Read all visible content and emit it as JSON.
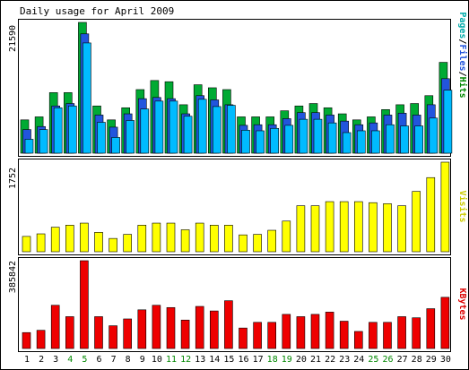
{
  "title": "Daily usage for April 2009",
  "colors": {
    "page_bg": "#ffffff",
    "frame": "#000000",
    "hits": "#00aa33",
    "files": "#2255dd",
    "pages": "#00bbff",
    "visits": "#ffff00",
    "kbytes": "#ee0000",
    "weekday_label": "#000000",
    "weekend_label": "#008800",
    "label_hits": "#008800",
    "label_files": "#2255dd",
    "label_pages": "#00aaaa",
    "label_visits": "#cccc00",
    "label_kbytes": "#dd0000"
  },
  "chart_data": [
    {
      "type": "bar",
      "name": "hits-files-pages",
      "y_max_label": "21590",
      "ylim": [
        0,
        21590
      ],
      "right_label_parts": [
        {
          "text": "Pages",
          "color_key": "label_pages"
        },
        {
          "text": "/",
          "color_key": "frame"
        },
        {
          "text": "Files",
          "color_key": "label_files"
        },
        {
          "text": "/",
          "color_key": "frame"
        },
        {
          "text": "Hits",
          "color_key": "label_hits"
        }
      ],
      "categories": [
        "1",
        "2",
        "3",
        "4",
        "5",
        "6",
        "7",
        "8",
        "9",
        "10",
        "11",
        "12",
        "13",
        "14",
        "15",
        "16",
        "17",
        "18",
        "19",
        "20",
        "21",
        "22",
        "23",
        "24",
        "25",
        "26",
        "27",
        "28",
        "29",
        "30"
      ],
      "series": [
        {
          "key": "hits",
          "values": [
            5500,
            6000,
            10000,
            10000,
            21590,
            7800,
            5500,
            7500,
            10500,
            12000,
            11800,
            8000,
            11300,
            10800,
            10500,
            6000,
            6000,
            6000,
            7000,
            7800,
            8200,
            7500,
            6500,
            5500,
            6000,
            7200,
            8000,
            8200,
            9500,
            15000
          ]
        },
        {
          "key": "files",
          "values": [
            3900,
            4400,
            7800,
            8200,
            19700,
            6300,
            4300,
            6500,
            9000,
            9200,
            9000,
            6500,
            9500,
            8800,
            8000,
            4600,
            4700,
            4700,
            5700,
            6700,
            6700,
            6300,
            5300,
            4700,
            5000,
            6300,
            6600,
            6300,
            8000,
            12300
          ]
        },
        {
          "key": "pages",
          "values": [
            2300,
            3900,
            7500,
            7800,
            18200,
            5100,
            2600,
            5400,
            7300,
            8600,
            8600,
            6100,
            8900,
            7700,
            7900,
            3800,
            3700,
            4100,
            4600,
            5600,
            5600,
            5000,
            3400,
            3700,
            3700,
            4700,
            4500,
            4500,
            5800,
            10400
          ]
        }
      ]
    },
    {
      "type": "bar",
      "name": "visits",
      "y_max_label": "1752",
      "ylim": [
        0,
        1752
      ],
      "right_label_parts": [
        {
          "text": "Visits",
          "color_key": "label_visits"
        }
      ],
      "categories": [
        "1",
        "2",
        "3",
        "4",
        "5",
        "6",
        "7",
        "8",
        "9",
        "10",
        "11",
        "12",
        "13",
        "14",
        "15",
        "16",
        "17",
        "18",
        "19",
        "20",
        "21",
        "22",
        "23",
        "24",
        "25",
        "26",
        "27",
        "28",
        "29",
        "30"
      ],
      "series": [
        {
          "key": "visits",
          "values": [
            300,
            350,
            480,
            520,
            560,
            380,
            260,
            340,
            520,
            560,
            560,
            430,
            560,
            520,
            520,
            330,
            340,
            420,
            600,
            900,
            900,
            980,
            980,
            980,
            960,
            940,
            900,
            1180,
            1450,
            1752
          ]
        }
      ]
    },
    {
      "type": "bar",
      "name": "kbytes",
      "y_max_label": "385842",
      "ylim": [
        0,
        385842
      ],
      "right_label_parts": [
        {
          "text": "KBytes",
          "color_key": "label_kbytes"
        }
      ],
      "categories": [
        "1",
        "2",
        "3",
        "4",
        "5",
        "6",
        "7",
        "8",
        "9",
        "10",
        "11",
        "12",
        "13",
        "14",
        "15",
        "16",
        "17",
        "18",
        "19",
        "20",
        "21",
        "22",
        "23",
        "24",
        "25",
        "26",
        "27",
        "28",
        "29",
        "30"
      ],
      "series": [
        {
          "key": "kbytes",
          "values": [
            70000,
            80000,
            190000,
            140000,
            385842,
            140000,
            100000,
            130000,
            170000,
            190000,
            180000,
            125000,
            185000,
            165000,
            210000,
            90000,
            115000,
            115000,
            150000,
            140000,
            150000,
            160000,
            120000,
            75000,
            115000,
            115000,
            140000,
            135000,
            175000,
            225000
          ]
        }
      ]
    }
  ],
  "x_labels": [
    {
      "text": "1",
      "weekend": false
    },
    {
      "text": "2",
      "weekend": false
    },
    {
      "text": "3",
      "weekend": false
    },
    {
      "text": "4",
      "weekend": true
    },
    {
      "text": "5",
      "weekend": true
    },
    {
      "text": "6",
      "weekend": false
    },
    {
      "text": "7",
      "weekend": false
    },
    {
      "text": "8",
      "weekend": false
    },
    {
      "text": "9",
      "weekend": false
    },
    {
      "text": "10",
      "weekend": false
    },
    {
      "text": "11",
      "weekend": true
    },
    {
      "text": "12",
      "weekend": true
    },
    {
      "text": "13",
      "weekend": false
    },
    {
      "text": "14",
      "weekend": false
    },
    {
      "text": "15",
      "weekend": false
    },
    {
      "text": "16",
      "weekend": false
    },
    {
      "text": "17",
      "weekend": false
    },
    {
      "text": "18",
      "weekend": true
    },
    {
      "text": "19",
      "weekend": true
    },
    {
      "text": "20",
      "weekend": false
    },
    {
      "text": "21",
      "weekend": false
    },
    {
      "text": "22",
      "weekend": false
    },
    {
      "text": "23",
      "weekend": false
    },
    {
      "text": "24",
      "weekend": false
    },
    {
      "text": "25",
      "weekend": true
    },
    {
      "text": "26",
      "weekend": true
    },
    {
      "text": "27",
      "weekend": false
    },
    {
      "text": "28",
      "weekend": false
    },
    {
      "text": "29",
      "weekend": false
    },
    {
      "text": "30",
      "weekend": false
    }
  ]
}
